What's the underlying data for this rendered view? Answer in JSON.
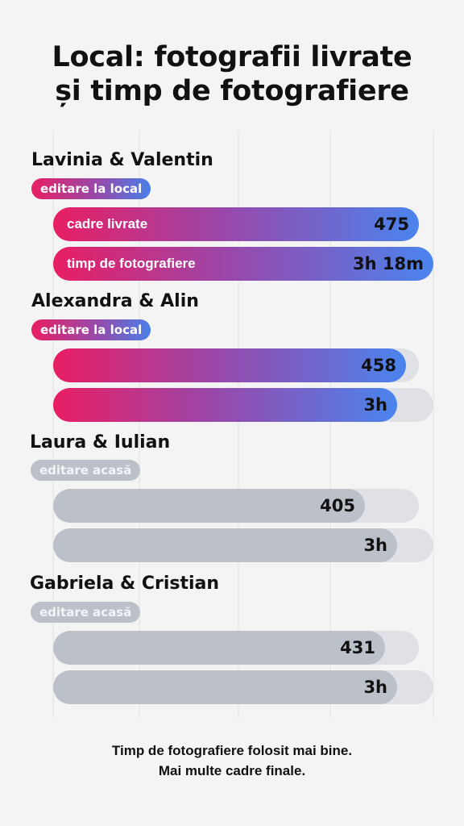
{
  "title_lines": [
    "Local: fotografii livrate",
    "și timp de fotografiere"
  ],
  "footer_lines": [
    "Timp de fotografiere folosit mai bine.",
    "Mai multe cadre finale."
  ],
  "colors": {
    "local_start": "#e91e63",
    "local_end": "#4a84ee",
    "home": "#bcc0c8",
    "track": "#dfe1e6",
    "grid": "#e6e6e6"
  },
  "chart_data": {
    "type": "bar",
    "orientation": "horizontal",
    "metrics": [
      {
        "key": "frames",
        "label": "cadre livrate",
        "max": 500
      },
      {
        "key": "time",
        "label": "timp de fotografiere",
        "unit": "hours",
        "max": 3.3
      }
    ],
    "groups": [
      {
        "name": "Lavinia & Valentin",
        "badge": "editare la local",
        "style": "local",
        "frames": 475,
        "frames_label": "475",
        "time": 3.3,
        "time_label": "3h 18m",
        "show_labels": true
      },
      {
        "name": "Alexandra & Alin",
        "badge": "editare la local",
        "style": "local",
        "frames": 458,
        "frames_label": "458",
        "time": 3.0,
        "time_label": "3h",
        "show_labels": false
      },
      {
        "name": "Laura & Iulian",
        "badge": "editare acasă",
        "style": "home",
        "frames": 405,
        "frames_label": "405",
        "time": 3.0,
        "time_label": "3h",
        "show_labels": false
      },
      {
        "name": "Gabriela & Cristian",
        "badge": "editare acasă",
        "style": "home",
        "frames": 431,
        "frames_label": "431",
        "time": 3.0,
        "time_label": "3h",
        "show_labels": false
      }
    ],
    "grid": true
  }
}
